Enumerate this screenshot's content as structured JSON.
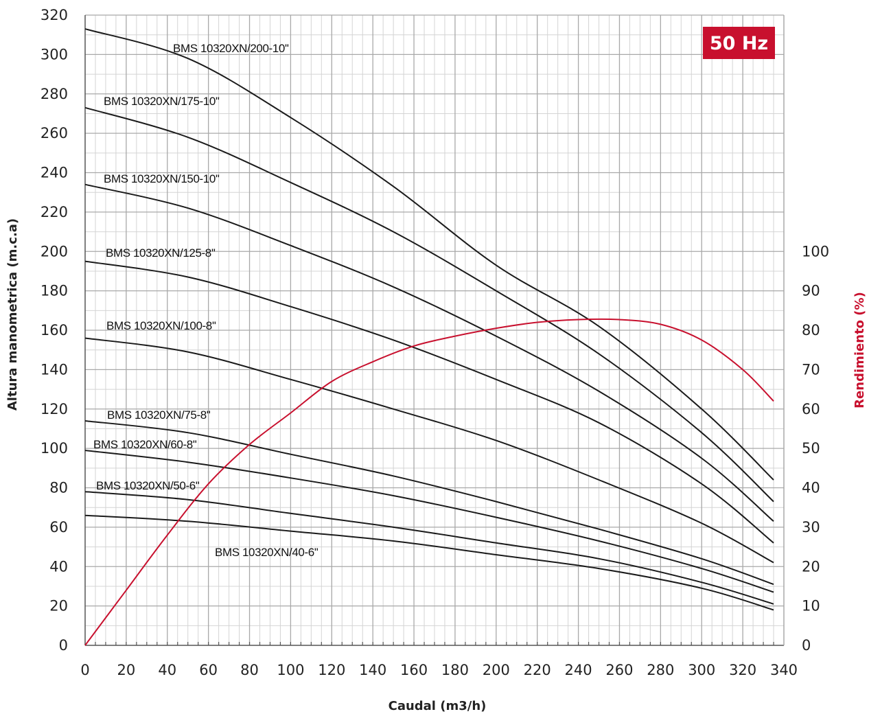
{
  "badge": "50 Hz",
  "colors": {
    "badge": "#C8102E",
    "efficiency": "#C8102E",
    "curves": "#1A1A1A",
    "grid_major": "#A8A8A8",
    "grid_minor": "#D4D4D4"
  },
  "chart_data": {
    "type": "line",
    "xlabel": "Caudal (m3/h)",
    "ylabel": "Altura manometrica (m.c.a)",
    "y2label": "Rendimiento (%)",
    "xlim": [
      0,
      340
    ],
    "ylim": [
      0,
      320
    ],
    "y2lim": [
      0,
      100
    ],
    "xticks": [
      0,
      20,
      40,
      60,
      80,
      100,
      120,
      140,
      160,
      180,
      200,
      220,
      240,
      260,
      280,
      300,
      320,
      340
    ],
    "yticks": [
      0,
      20,
      40,
      60,
      80,
      100,
      120,
      140,
      160,
      180,
      200,
      220,
      240,
      260,
      280,
      300,
      320
    ],
    "y2ticks": [
      0,
      10,
      20,
      30,
      40,
      50,
      60,
      70,
      80,
      90,
      100
    ],
    "grid": true,
    "series": [
      {
        "name": "BMS 10320XN/200-10''",
        "x": [
          0,
          50,
          100,
          150,
          200,
          250,
          300,
          335
        ],
        "y": [
          313,
          298,
          268,
          233,
          193,
          162,
          120,
          84
        ]
      },
      {
        "name": "BMS 10320XN/175-10''",
        "x": [
          0,
          50,
          100,
          150,
          200,
          250,
          300,
          335
        ],
        "y": [
          273,
          258,
          235,
          210,
          180,
          148,
          108,
          73
        ]
      },
      {
        "name": "BMS 10320XN/150-10''",
        "x": [
          0,
          50,
          100,
          150,
          200,
          250,
          300,
          335
        ],
        "y": [
          234,
          222,
          203,
          182,
          157,
          129,
          95,
          63
        ]
      },
      {
        "name": "BMS 10320XN/125-8''",
        "x": [
          0,
          50,
          100,
          150,
          200,
          250,
          300,
          335
        ],
        "y": [
          195,
          187,
          172,
          155,
          135,
          113,
          82,
          52
        ]
      },
      {
        "name": "BMS 10320XN/100-8''",
        "x": [
          0,
          50,
          100,
          150,
          200,
          250,
          300,
          335
        ],
        "y": [
          156,
          149,
          135,
          120,
          104,
          84,
          62,
          42
        ]
      },
      {
        "name": "BMS 10320XN/75-8''",
        "x": [
          0,
          50,
          100,
          150,
          200,
          250,
          300,
          335
        ],
        "y": [
          114,
          108,
          97,
          86,
          73,
          59,
          44,
          31
        ]
      },
      {
        "name": "BMS 10320XN/60-8''",
        "x": [
          0,
          50,
          100,
          150,
          200,
          250,
          300,
          335
        ],
        "y": [
          99,
          93,
          85,
          76,
          65,
          53,
          39,
          27
        ]
      },
      {
        "name": "BMS 10320XN/50-6''",
        "x": [
          0,
          50,
          100,
          150,
          200,
          250,
          300,
          335
        ],
        "y": [
          78,
          74,
          67,
          60,
          52,
          44,
          32,
          21
        ]
      },
      {
        "name": "BMS 10320XN/40-6''",
        "x": [
          0,
          50,
          100,
          150,
          200,
          250,
          300,
          335
        ],
        "y": [
          66,
          63,
          58,
          53,
          46,
          39,
          29,
          18
        ]
      }
    ],
    "efficiency": {
      "name": "Rendimiento (%)",
      "x": [
        0,
        20,
        40,
        60,
        80,
        100,
        120,
        140,
        160,
        180,
        200,
        220,
        240,
        260,
        280,
        300,
        320,
        335
      ],
      "y": [
        0,
        14,
        28,
        41,
        51,
        59,
        67,
        72,
        76,
        78.5,
        80.5,
        82,
        82.7,
        82.7,
        81.5,
        77.5,
        70,
        62
      ]
    }
  }
}
